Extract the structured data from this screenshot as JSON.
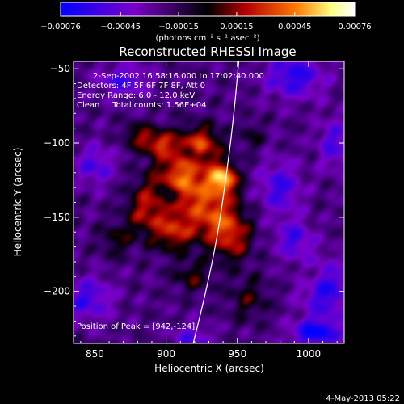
{
  "chart_data": {
    "type": "heatmap",
    "title": "Reconstructed RHESSI Image",
    "xlabel": "Heliocentric X (arcsec)",
    "ylabel": "Heliocentric Y (arcsec)",
    "xlim": [
      835,
      1025
    ],
    "ylim": [
      -235,
      -45
    ],
    "xticks": [
      850,
      900,
      950,
      1000
    ],
    "yticks": [
      -50,
      -100,
      -150,
      -200
    ],
    "xtick_labels": [
      "850",
      "900",
      "950",
      "1000"
    ],
    "ytick_labels": [
      "−50",
      "−100",
      "−150",
      "−200"
    ],
    "colorbar": {
      "range": [
        -0.00076,
        0.00076
      ],
      "ticks": [
        -0.00076,
        -0.00045,
        -0.00015,
        0.00015,
        0.00045,
        0.00076
      ],
      "tick_labels": [
        "−0.00076",
        "−0.00045",
        "−0.00015",
        "0.00015",
        "0.00045",
        "0.00076"
      ],
      "unit_label": "(photons cm⁻² s⁻¹ asec⁻²)",
      "colors": [
        "#0000ff",
        "#7a00c8",
        "#000000",
        "#b40000",
        "#ff7800",
        "#ffff80",
        "#ffffff"
      ]
    },
    "annotations": {
      "time_range": "2-Sep-2002 16:58:16.000 to 17:02:40.000",
      "detectors": "Detectors: 4F 5F 6F 7F 8F, Att 0",
      "energy_range": "Energy Range: 6.0 - 12.0 keV",
      "clean_counts": "Clean     Total counts: 1.56E+04",
      "peak_position": "Position of Peak = [942,-124]"
    },
    "peak": {
      "x": 942,
      "y": -124
    },
    "limb_curve": [
      [
        919,
        -235
      ],
      [
        928,
        -200
      ],
      [
        936,
        -163
      ],
      [
        942,
        -124
      ],
      [
        947,
        -86
      ],
      [
        951,
        -45
      ]
    ],
    "emission_blobs": [
      {
        "x": 912,
        "y": -125,
        "sx": 14,
        "sy": 16,
        "amp": 0.00062
      },
      {
        "x": 940,
        "y": -124,
        "sx": 7,
        "sy": 7,
        "amp": 0.0007
      },
      {
        "x": 935,
        "y": -150,
        "sx": 12,
        "sy": 14,
        "amp": 0.0005
      },
      {
        "x": 895,
        "y": -100,
        "sx": 8,
        "sy": 6,
        "amp": 0.00042
      },
      {
        "x": 885,
        "y": -145,
        "sx": 9,
        "sy": 12,
        "amp": 0.00038
      },
      {
        "x": 905,
        "y": -160,
        "sx": 10,
        "sy": 9,
        "amp": 0.00042
      },
      {
        "x": 925,
        "y": -100,
        "sx": 10,
        "sy": 8,
        "amp": 0.00042
      },
      {
        "x": 948,
        "y": -165,
        "sx": 9,
        "sy": 11,
        "amp": 0.00032
      },
      {
        "x": 958,
        "y": -205,
        "sx": 10,
        "sy": 10,
        "amp": 0.00022
      },
      {
        "x": 880,
        "y": -95,
        "sx": 7,
        "sy": 6,
        "amp": 0.00028
      },
      {
        "x": 865,
        "y": -165,
        "sx": 8,
        "sy": 8,
        "amp": 0.00022
      },
      {
        "x": 918,
        "y": -190,
        "sx": 9,
        "sy": 7,
        "amp": 0.00025
      },
      {
        "x": 903,
        "y": -135,
        "sx": 5,
        "sy": 5,
        "amp": -0.0003
      },
      {
        "x": 918,
        "y": -108,
        "sx": 4,
        "sy": 4,
        "amp": -0.00025
      },
      {
        "x": 845,
        "y": -205,
        "sx": 12,
        "sy": 10,
        "amp": -0.00035
      },
      {
        "x": 850,
        "y": -115,
        "sx": 9,
        "sy": 9,
        "amp": -0.00032
      },
      {
        "x": 990,
        "y": -55,
        "sx": 14,
        "sy": 10,
        "amp": -0.00042
      },
      {
        "x": 1012,
        "y": -200,
        "sx": 12,
        "sy": 14,
        "amp": -0.0004
      },
      {
        "x": 980,
        "y": -130,
        "sx": 10,
        "sy": 12,
        "amp": -0.00036
      },
      {
        "x": 990,
        "y": -165,
        "sx": 9,
        "sy": 9,
        "amp": -0.00034
      },
      {
        "x": 1018,
        "y": -100,
        "sx": 8,
        "sy": 12,
        "amp": -0.0003
      },
      {
        "x": 870,
        "y": -58,
        "sx": 12,
        "sy": 7,
        "amp": -0.00033
      },
      {
        "x": 1005,
        "y": -228,
        "sx": 12,
        "sy": 6,
        "amp": -0.0005
      },
      {
        "x": 918,
        "y": -232,
        "sx": 10,
        "sy": 6,
        "amp": -0.00028
      },
      {
        "x": 960,
        "y": -95,
        "sx": 5,
        "sy": 7,
        "amp": 0.00018
      },
      {
        "x": 1000,
        "y": -190,
        "sx": 5,
        "sy": 5,
        "amp": 0.00015
      }
    ]
  },
  "footer": {
    "timestamp": "4-May-2013 05:22"
  }
}
